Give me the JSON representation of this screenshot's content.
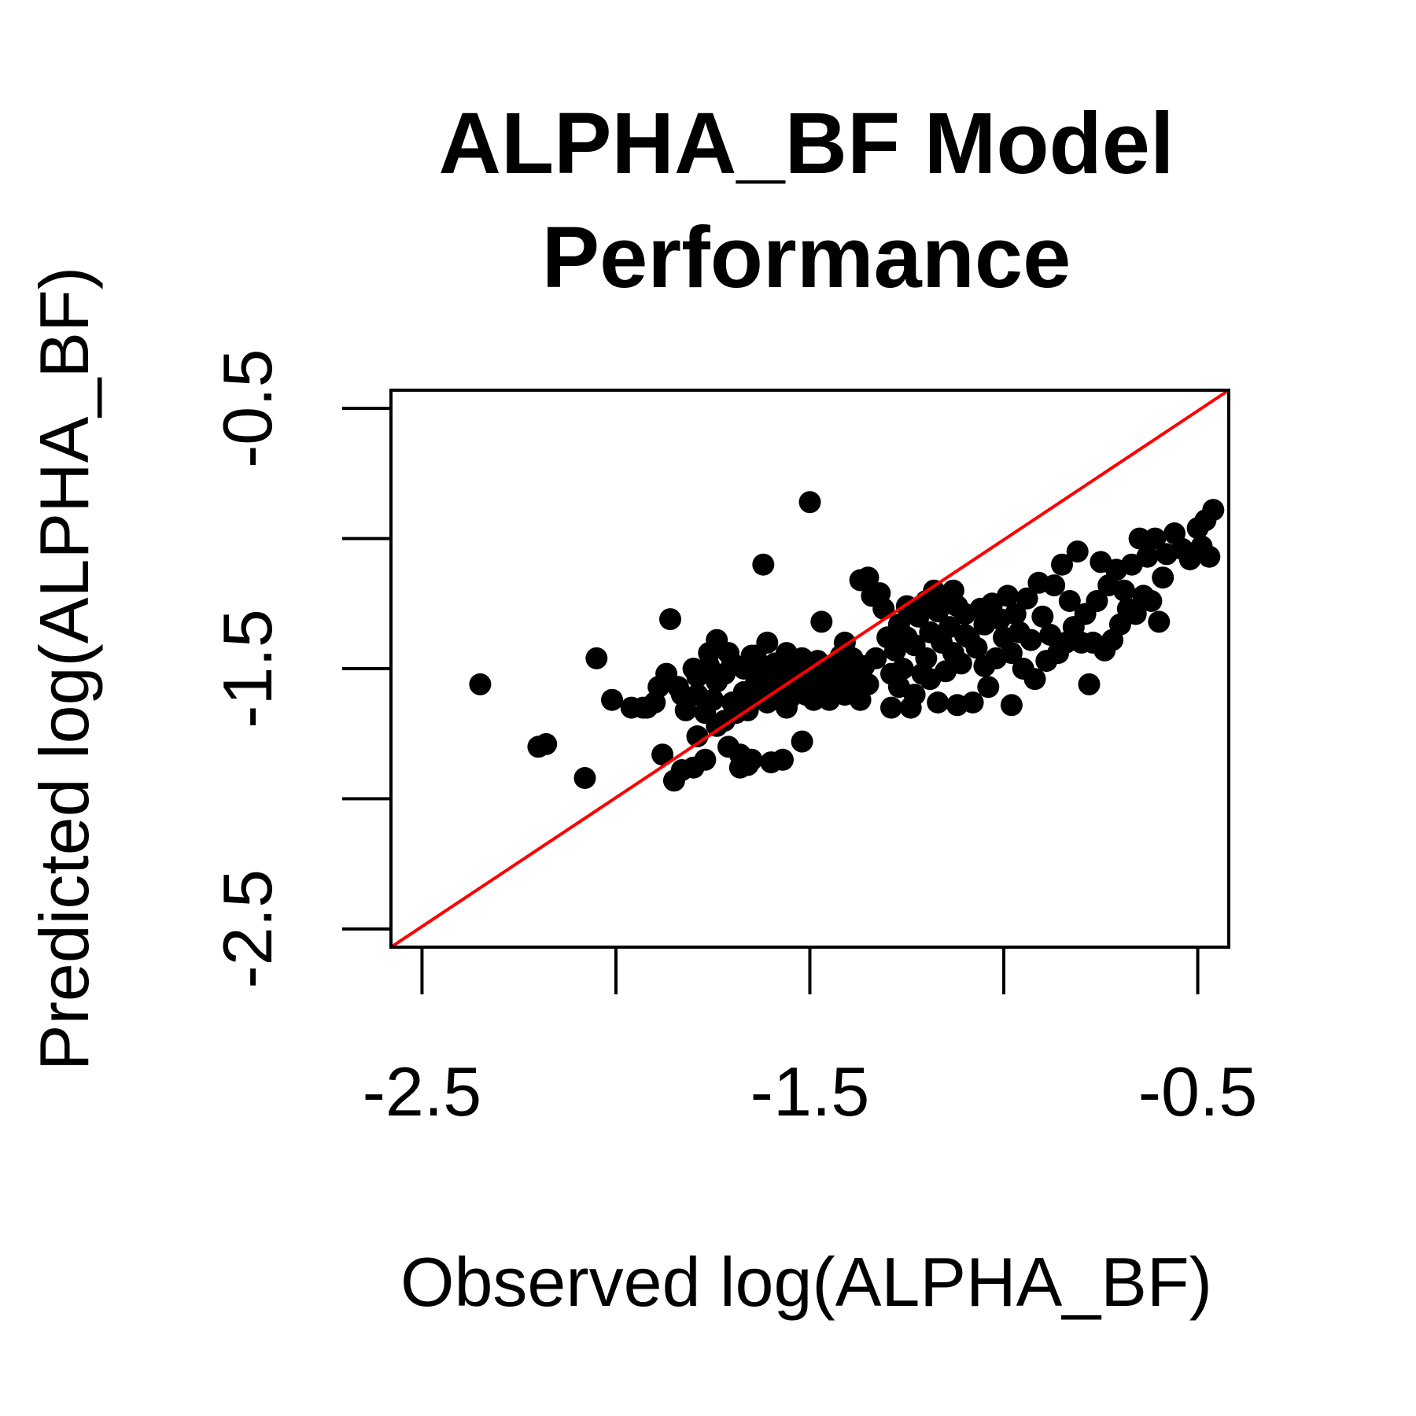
{
  "chart_data": {
    "type": "scatter",
    "title_lines": [
      "ALPHA_BF Model",
      "Performance"
    ],
    "xlabel": "Observed log(ALPHA_BF)",
    "ylabel": "Predicted log(ALPHA_BF)",
    "xlim": [
      -2.58,
      -0.42
    ],
    "ylim": [
      -2.57,
      -0.43
    ],
    "x_ticks": [
      -2.5,
      -2.0,
      -1.5,
      -1.0,
      -0.5
    ],
    "y_ticks": [
      -2.5,
      -2.0,
      -1.5,
      -1.0,
      -0.5
    ],
    "x_tick_labels": [
      {
        "value": -2.5,
        "label": "-2.5"
      },
      {
        "value": -1.5,
        "label": "-1.5"
      },
      {
        "value": -0.5,
        "label": "-0.5"
      }
    ],
    "y_tick_labels": [
      {
        "value": -2.5,
        "label": "-2.5"
      },
      {
        "value": -1.5,
        "label": "-1.5"
      },
      {
        "value": -0.5,
        "label": "-0.5"
      }
    ],
    "reference_line": {
      "from": [
        -2.58,
        -2.57
      ],
      "to": [
        -0.42,
        -0.43
      ],
      "color": "#ff0000"
    },
    "point_color": "#000000",
    "line_color": "#ff0000",
    "points": [
      [
        -2.35,
        -1.56
      ],
      [
        -2.2,
        -1.8
      ],
      [
        -2.18,
        -1.79
      ],
      [
        -2.08,
        -1.92
      ],
      [
        -2.05,
        -1.46
      ],
      [
        -2.01,
        -1.62
      ],
      [
        -1.96,
        -1.65
      ],
      [
        -1.92,
        -1.65
      ],
      [
        -1.89,
        -1.57
      ],
      [
        -1.88,
        -1.83
      ],
      [
        -1.86,
        -1.31
      ],
      [
        -1.84,
        -1.57
      ],
      [
        -1.87,
        -1.52
      ],
      [
        -1.85,
        -1.93
      ],
      [
        -1.83,
        -1.89
      ],
      [
        -1.82,
        -1.66
      ],
      [
        -1.8,
        -1.88
      ],
      [
        -1.79,
        -1.53
      ],
      [
        -1.79,
        -1.6
      ],
      [
        -1.77,
        -1.85
      ],
      [
        -1.77,
        -1.67
      ],
      [
        -1.76,
        -1.49
      ],
      [
        -1.75,
        -1.62
      ],
      [
        -1.74,
        -1.72
      ],
      [
        -1.74,
        -1.55
      ],
      [
        -1.72,
        -1.7
      ],
      [
        -1.72,
        -1.52
      ],
      [
        -1.71,
        -1.44
      ],
      [
        -1.7,
        -1.63
      ],
      [
        -1.69,
        -1.67
      ],
      [
        -1.68,
        -1.83
      ],
      [
        -1.67,
        -1.5
      ],
      [
        -1.67,
        -1.59
      ],
      [
        -1.66,
        -1.66
      ],
      [
        -1.65,
        -1.85
      ],
      [
        -1.65,
        -1.45
      ],
      [
        -1.64,
        -1.56
      ],
      [
        -1.63,
        -1.61
      ],
      [
        -1.62,
        -1.5
      ],
      [
        -1.61,
        -1.4
      ],
      [
        -1.61,
        -1.63
      ],
      [
        -1.6,
        -1.86
      ],
      [
        -1.6,
        -1.55
      ],
      [
        -1.59,
        -1.48
      ],
      [
        -1.58,
        -1.58
      ],
      [
        -1.57,
        -1.85
      ],
      [
        -1.57,
        -1.52
      ],
      [
        -1.56,
        -1.44
      ],
      [
        -1.55,
        -1.61
      ],
      [
        -1.54,
        -1.5
      ],
      [
        -1.53,
        -1.56
      ],
      [
        -1.52,
        -1.78
      ],
      [
        -1.52,
        -1.46
      ],
      [
        -1.51,
        -1.6
      ],
      [
        -1.5,
        -1.53
      ],
      [
        -1.49,
        -1.62
      ],
      [
        -1.48,
        -1.47
      ],
      [
        -1.47,
        -1.32
      ],
      [
        -1.47,
        -1.58
      ],
      [
        -1.46,
        -1.51
      ],
      [
        -1.45,
        -1.62
      ],
      [
        -1.44,
        -1.49
      ],
      [
        -1.43,
        -1.56
      ],
      [
        -1.42,
        -1.45
      ],
      [
        -1.41,
        -1.6
      ],
      [
        -1.4,
        -1.52
      ],
      [
        -1.39,
        -1.46
      ],
      [
        -1.38,
        -1.55
      ],
      [
        -1.37,
        -1.62
      ],
      [
        -1.36,
        -1.49
      ],
      [
        -1.35,
        -1.56
      ],
      [
        -1.35,
        -1.15
      ],
      [
        -1.33,
        -1.46
      ],
      [
        -1.32,
        -1.21
      ],
      [
        -1.31,
        -1.27
      ],
      [
        -1.3,
        -1.38
      ],
      [
        -1.29,
        -1.52
      ],
      [
        -1.28,
        -1.43
      ],
      [
        -1.27,
        -1.33
      ],
      [
        -1.26,
        -1.5
      ],
      [
        -1.25,
        -1.26
      ],
      [
        -1.24,
        -1.65
      ],
      [
        -1.23,
        -1.41
      ],
      [
        -1.22,
        -1.3
      ],
      [
        -1.21,
        -1.52
      ],
      [
        -1.2,
        -1.24
      ],
      [
        -1.2,
        -1.46
      ],
      [
        -1.19,
        -1.36
      ],
      [
        -1.18,
        -1.2
      ],
      [
        -1.17,
        -1.28
      ],
      [
        -1.17,
        -1.63
      ],
      [
        -1.16,
        -1.4
      ],
      [
        -1.15,
        -1.51
      ],
      [
        -1.14,
        -1.34
      ],
      [
        -1.13,
        -1.44
      ],
      [
        -1.12,
        -1.64
      ],
      [
        -1.12,
        -1.26
      ],
      [
        -1.11,
        -1.48
      ],
      [
        -1.1,
        -1.29
      ],
      [
        -1.09,
        -1.38
      ],
      [
        -1.08,
        -1.63
      ],
      [
        -1.07,
        -1.42
      ],
      [
        -1.06,
        -1.27
      ],
      [
        -1.05,
        -1.49
      ],
      [
        -1.05,
        -1.33
      ],
      [
        -1.04,
        -1.57
      ],
      [
        -1.03,
        -1.25
      ],
      [
        -1.02,
        -1.46
      ],
      [
        -1.01,
        -1.31
      ],
      [
        -1.0,
        -1.38
      ],
      [
        -0.99,
        -1.22
      ],
      [
        -0.98,
        -1.44
      ],
      [
        -0.98,
        -1.64
      ],
      [
        -0.97,
        -1.29
      ],
      [
        -0.96,
        -1.36
      ],
      [
        -0.95,
        -1.5
      ],
      [
        -0.94,
        -1.23
      ],
      [
        -0.93,
        -1.39
      ],
      [
        -0.92,
        -1.54
      ],
      [
        -0.91,
        -1.17
      ],
      [
        -0.9,
        -1.3
      ],
      [
        -0.89,
        -1.47
      ],
      [
        -0.88,
        -1.37
      ],
      [
        -0.87,
        -1.18
      ],
      [
        -0.86,
        -1.44
      ],
      [
        -0.85,
        -1.1
      ],
      [
        -0.84,
        -1.4
      ],
      [
        -0.83,
        -1.24
      ],
      [
        -0.82,
        -1.34
      ],
      [
        -0.81,
        -1.05
      ],
      [
        -0.8,
        -1.4
      ],
      [
        -0.79,
        -1.29
      ],
      [
        -0.78,
        -1.56
      ],
      [
        -0.77,
        -1.4
      ],
      [
        -0.76,
        -1.24
      ],
      [
        -0.75,
        -1.09
      ],
      [
        -0.74,
        -1.43
      ],
      [
        -0.73,
        -1.18
      ],
      [
        -0.72,
        -1.39
      ],
      [
        -0.71,
        -1.12
      ],
      [
        -0.7,
        -1.33
      ],
      [
        -0.69,
        -1.2
      ],
      [
        -0.68,
        -1.27
      ],
      [
        -0.67,
        -1.1
      ],
      [
        -0.66,
        -1.29
      ],
      [
        -0.65,
        -1.0
      ],
      [
        -0.64,
        -1.22
      ],
      [
        -0.63,
        -1.07
      ],
      [
        -0.62,
        -1.24
      ],
      [
        -0.61,
        -1.0
      ],
      [
        -0.6,
        -1.32
      ],
      [
        -0.59,
        -1.15
      ],
      [
        -0.58,
        -1.06
      ],
      [
        -0.56,
        -0.98
      ],
      [
        -0.54,
        -1.04
      ],
      [
        -0.52,
        -1.08
      ],
      [
        -0.5,
        -0.96
      ],
      [
        -0.49,
        -1.03
      ],
      [
        -0.48,
        -0.93
      ],
      [
        -0.47,
        -1.07
      ],
      [
        -0.46,
        -0.89
      ],
      [
        -1.62,
        -1.1
      ],
      [
        -1.5,
        -0.86
      ],
      [
        -1.93,
        -1.65
      ],
      [
        -1.9,
        -1.63
      ],
      [
        -1.74,
        -1.39
      ],
      [
        -1.7,
        -1.48
      ],
      [
        -1.8,
        -1.5
      ],
      [
        -1.76,
        -1.44
      ],
      [
        -1.64,
        -1.45
      ],
      [
        -1.83,
        -1.6
      ],
      [
        -1.79,
        -1.76
      ],
      [
        -1.71,
        -1.8
      ],
      [
        -1.68,
        -1.88
      ],
      [
        -1.66,
        -1.87
      ],
      [
        -1.58,
        -1.62
      ],
      [
        -1.56,
        -1.65
      ],
      [
        -1.41,
        -1.4
      ],
      [
        -1.37,
        -1.16
      ],
      [
        -1.34,
        -1.22
      ],
      [
        -1.29,
        -1.65
      ],
      [
        -1.27,
        -1.57
      ],
      [
        -1.25,
        -1.38
      ],
      [
        -1.23,
        -1.6
      ],
      [
        -1.19,
        -1.54
      ],
      [
        -1.15,
        -1.25
      ],
      [
        -1.13,
        -1.2
      ],
      [
        -1.1,
        -1.37
      ]
    ]
  }
}
